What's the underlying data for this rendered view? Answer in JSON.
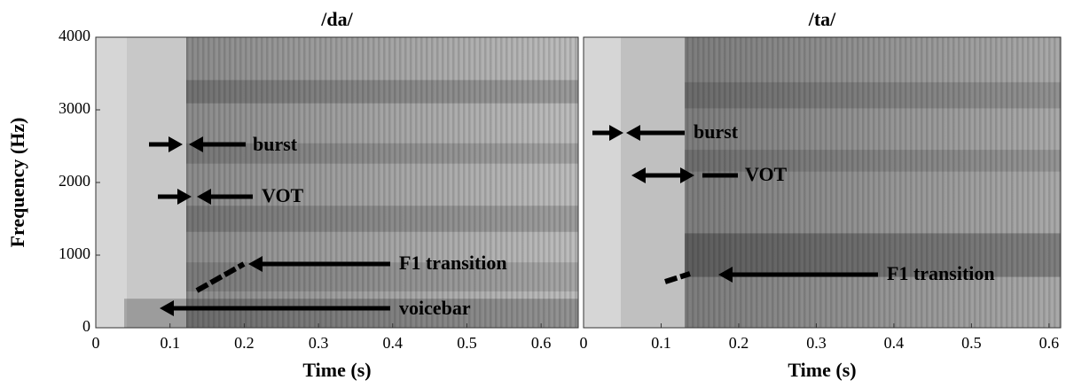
{
  "chart_data": [
    {
      "type": "spectrogram",
      "title": "/da/",
      "xlabel": "Time (s)",
      "ylabel": "Frequency (Hz)",
      "xlim": [
        0,
        0.65
      ],
      "xticks": [
        0,
        0.1,
        0.2,
        0.3,
        0.4,
        0.5,
        0.6
      ],
      "ylim": [
        0,
        4000
      ],
      "yticks": [
        0,
        1000,
        2000,
        3000,
        4000
      ],
      "annotations": [
        "burst",
        "VOT",
        "F1 transition",
        "voicebar"
      ]
    },
    {
      "type": "spectrogram",
      "title": "/ta/",
      "xlabel": "Time (s)",
      "xlim": [
        0,
        0.615
      ],
      "xticks": [
        0,
        0.1,
        0.2,
        0.3,
        0.4,
        0.5,
        0.6
      ],
      "ylim": [
        0,
        4000
      ],
      "annotations": [
        "burst",
        "VOT",
        "F1 transition"
      ]
    }
  ]
}
